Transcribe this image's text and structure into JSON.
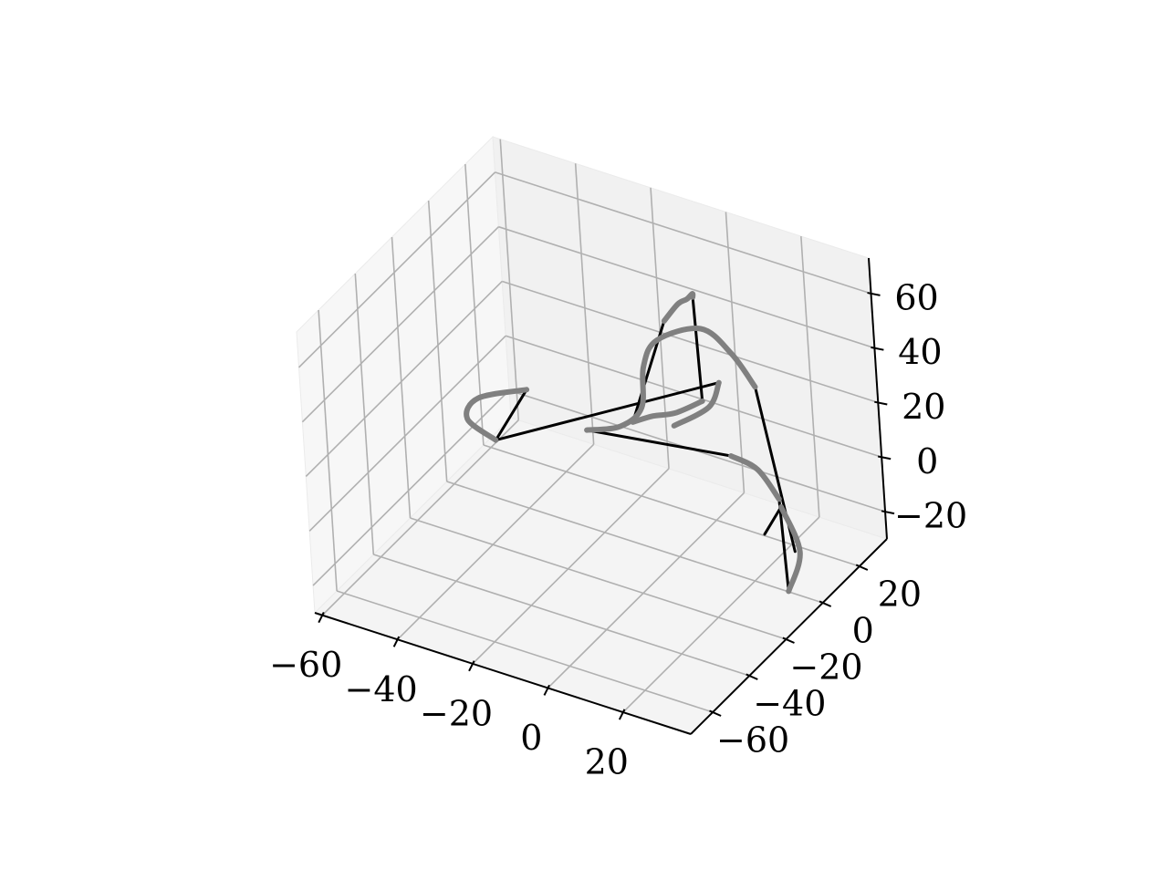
{
  "chart_data": {
    "type": "line3d",
    "title": "",
    "xlabel": "",
    "ylabel": "",
    "zlabel": "",
    "x_ticks": [
      -60,
      -40,
      -20,
      0,
      20
    ],
    "x_tick_labels": [
      "−60",
      "−40",
      "−20",
      "0",
      "20"
    ],
    "y_ticks": [
      -60,
      -40,
      -20,
      0,
      20
    ],
    "y_tick_labels": [
      "−60",
      "−40",
      "−20",
      "0",
      "20"
    ],
    "z_ticks": [
      -20,
      0,
      20,
      40,
      60
    ],
    "z_tick_labels": [
      "−20",
      "0",
      "20",
      "40",
      "60"
    ],
    "xlim": [
      -62,
      38
    ],
    "ylim": [
      -72,
      35
    ],
    "zlim": [
      -30,
      73
    ],
    "grid": true,
    "pane_color": "#f2f2f2",
    "grid_color": "#b0b0b0",
    "series": [
      {
        "style": "thick",
        "color": "#808080",
        "segments": [
          [
            [
              30,
              -2,
              -28
            ],
            [
              29,
              7,
              -20
            ],
            [
              22,
              12,
              -10
            ]
          ],
          [
            [
              20,
              15,
              -10
            ],
            [
              12,
              20,
              -6
            ],
            [
              4,
              22,
              -6
            ]
          ],
          [
            [
              -44,
              10,
              5
            ],
            [
              -52,
              0,
              5
            ],
            [
              -50,
              -10,
              5
            ],
            [
              -40,
              -15,
              5
            ]
          ],
          [
            [
              -22,
              -2,
              8
            ],
            [
              -16,
              4,
              8
            ],
            [
              -12,
              8,
              14
            ],
            [
              -14,
              14,
              24
            ],
            [
              -12,
              18,
              32
            ],
            [
              -2,
              22,
              38
            ],
            [
              8,
              18,
              36
            ],
            [
              16,
              14,
              30
            ]
          ],
          [
            [
              -3,
              7,
              12
            ],
            [
              2,
              16,
              15
            ],
            [
              2,
              22,
              20
            ]
          ],
          [
            [
              2,
              -4,
              60
            ],
            [
              6,
              -4,
              68
            ],
            [
              8,
              -3,
              70
            ],
            [
              8,
              0,
              70
            ],
            [
              7,
              2,
              67
            ]
          ],
          [
            [
              3,
              11,
              21
            ],
            [
              -3,
              8,
              16
            ],
            [
              -8,
              6,
              14
            ],
            [
              -12,
              3,
              12
            ]
          ]
        ]
      },
      {
        "style": "thin",
        "color": "#000000",
        "segments": [
          [
            [
              30,
              -2,
              -28
            ],
            [
              20,
              15,
              -10
            ]
          ],
          [
            [
              22,
              12,
              -10
            ],
            [
              16,
              14,
              -24
            ]
          ],
          [
            [
              4,
              22,
              -6
            ],
            [
              -22,
              -2,
              8
            ]
          ],
          [
            [
              -40,
              -15,
              5
            ],
            [
              -44,
              10,
              5
            ]
          ],
          [
            [
              -40,
              -15,
              5
            ],
            [
              2,
              22,
              20
            ]
          ],
          [
            [
              2,
              -4,
              60
            ],
            [
              -12,
              3,
              12
            ]
          ],
          [
            [
              7,
              2,
              67
            ],
            [
              3,
              11,
              21
            ]
          ],
          [
            [
              16,
              14,
              30
            ],
            [
              25,
              12,
              -25
            ]
          ]
        ]
      }
    ]
  }
}
